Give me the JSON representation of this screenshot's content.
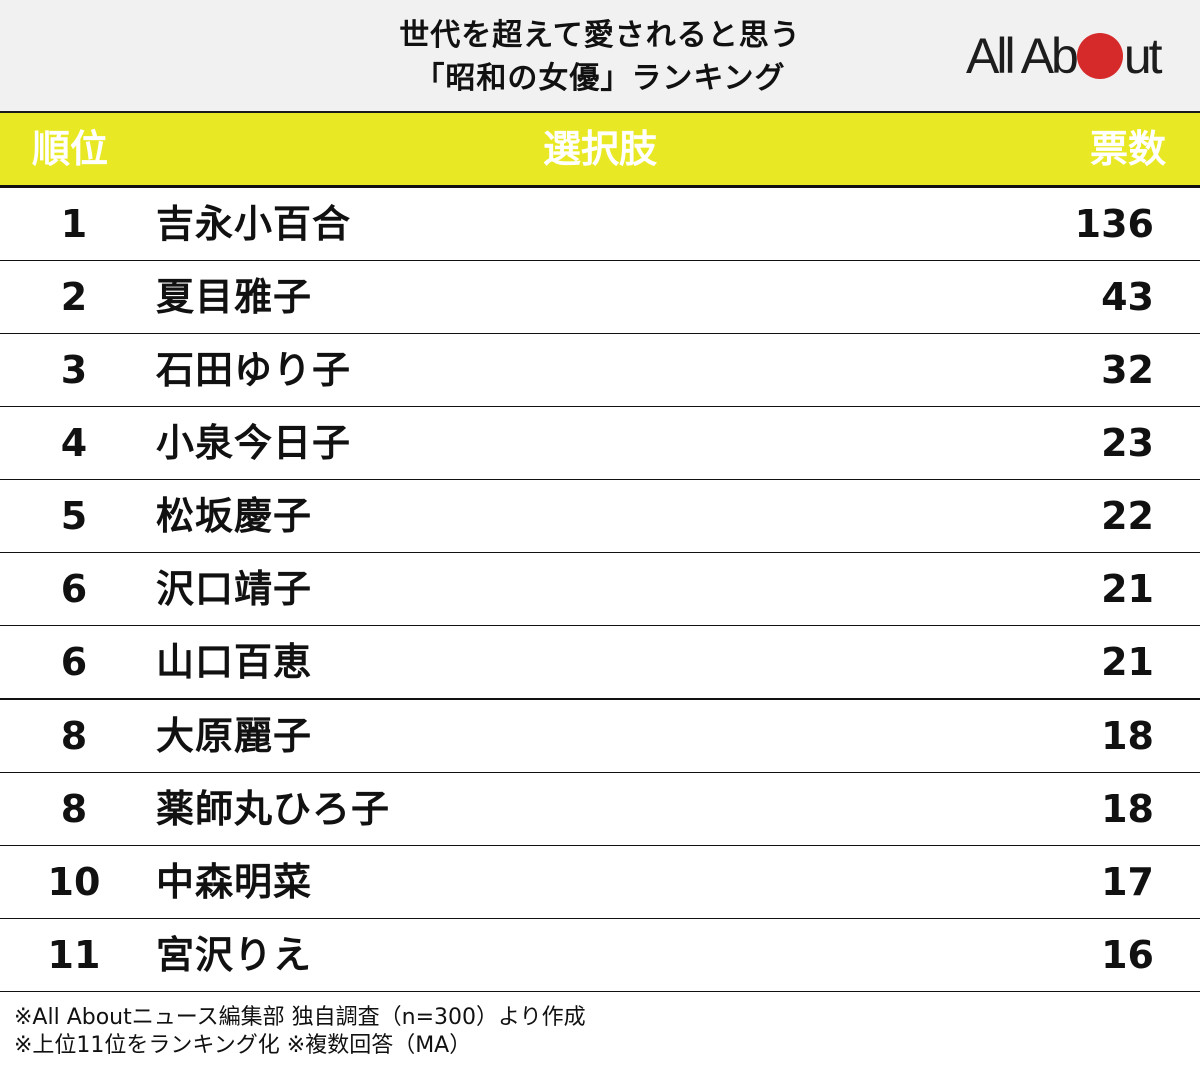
{
  "header": {
    "title_line1": "世代を超えて愛されると思う",
    "title_line2": "「昭和の女優」ランキング",
    "logo": {
      "text_before": "All Ab",
      "text_after": "ut",
      "dot_color": "#d62a2a"
    }
  },
  "table": {
    "columns": {
      "rank": "順位",
      "choice": "選択肢",
      "votes": "票数"
    },
    "header_bg": "#e9e825",
    "rows": [
      {
        "rank": "1",
        "name": "吉永小百合",
        "votes": "136"
      },
      {
        "rank": "2",
        "name": "夏目雅子",
        "votes": "43"
      },
      {
        "rank": "3",
        "name": "石田ゆり子",
        "votes": "32"
      },
      {
        "rank": "4",
        "name": "小泉今日子",
        "votes": "23"
      },
      {
        "rank": "5",
        "name": "松坂慶子",
        "votes": "22"
      },
      {
        "rank": "6",
        "name": "沢口靖子",
        "votes": "21"
      },
      {
        "rank": "6",
        "name": "山口百恵",
        "votes": "21"
      },
      {
        "rank": "8",
        "name": "大原麗子",
        "votes": "18"
      },
      {
        "rank": "8",
        "name": "薬師丸ひろ子",
        "votes": "18"
      },
      {
        "rank": "10",
        "name": "中森明菜",
        "votes": "17"
      },
      {
        "rank": "11",
        "name": "宮沢りえ",
        "votes": "16"
      }
    ]
  },
  "footer": {
    "note1": "※All Aboutニュース編集部 独自調査（n=300）より作成",
    "note2": "※上位11位をランキング化 ※複数回答（MA）"
  },
  "chart_data": {
    "type": "table",
    "title": "世代を超えて愛されると思う「昭和の女優」ランキング",
    "columns": [
      "順位",
      "選択肢",
      "票数"
    ],
    "categories": [
      "吉永小百合",
      "夏目雅子",
      "石田ゆり子",
      "小泉今日子",
      "松坂慶子",
      "沢口靖子",
      "山口百恵",
      "大原麗子",
      "薬師丸ひろ子",
      "中森明菜",
      "宮沢りえ"
    ],
    "ranks": [
      1,
      2,
      3,
      4,
      5,
      6,
      6,
      8,
      8,
      10,
      11
    ],
    "values": [
      136,
      43,
      32,
      23,
      22,
      21,
      21,
      18,
      18,
      17,
      16
    ],
    "notes": [
      "※All Aboutニュース編集部 独自調査（n=300）より作成",
      "※上位11位をランキング化 ※複数回答（MA）"
    ]
  }
}
